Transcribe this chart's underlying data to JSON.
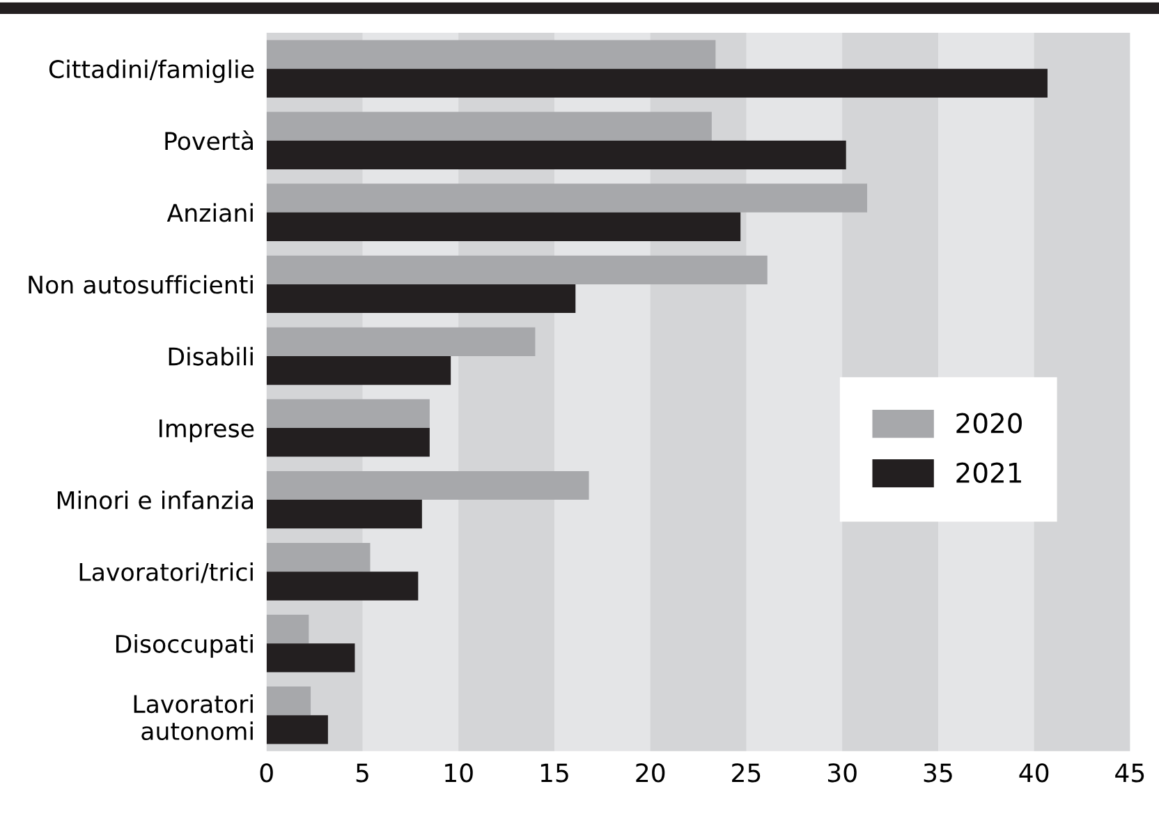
{
  "chart_data": {
    "type": "bar",
    "orientation": "horizontal",
    "categories": [
      "Cittadini/famiglie",
      "Povertà",
      "Anziani",
      "Non autosufficienti",
      "Disabili",
      "Imprese",
      "Minori e infanzia",
      "Lavoratori/trici",
      "Disoccupati",
      "Lavoratori\nautonomi"
    ],
    "series": [
      {
        "name": "2020",
        "color": "#a7a8ab",
        "values": [
          23.4,
          23.2,
          31.3,
          26.1,
          14.0,
          8.5,
          16.8,
          5.4,
          2.2,
          2.3
        ]
      },
      {
        "name": "2021",
        "color": "#231f20",
        "values": [
          40.7,
          30.2,
          24.7,
          16.1,
          9.6,
          8.5,
          8.1,
          7.9,
          4.6,
          3.2
        ]
      }
    ],
    "xlim": [
      0,
      45
    ],
    "xticks": [
      0,
      5,
      10,
      15,
      20,
      25,
      30,
      35,
      40,
      45
    ],
    "bands": [
      {
        "axis": "x",
        "from": 0,
        "to": 5,
        "color": "#d4d5d7"
      },
      {
        "axis": "x",
        "from": 10,
        "to": 15,
        "color": "#d4d5d7"
      },
      {
        "axis": "x",
        "from": 20,
        "to": 25,
        "color": "#d4d5d7"
      },
      {
        "axis": "x",
        "from": 30,
        "to": 35,
        "color": "#d4d5d7"
      },
      {
        "axis": "x",
        "from": 40,
        "to": 45,
        "color": "#d4d5d7"
      }
    ],
    "grid": false,
    "legend": "right"
  }
}
